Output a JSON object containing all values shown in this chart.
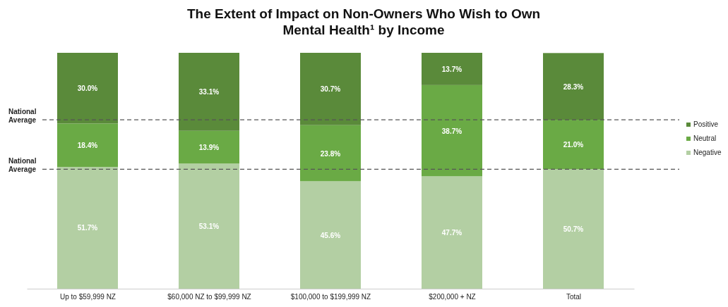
{
  "chart_data": {
    "type": "bar",
    "title": "The Extent of Impact on Non-Owners Who Wish to Own\nMental Health¹ by Income",
    "categories": [
      "Up to $59,999 NZ",
      "$60,000 NZ to $99,999 NZ",
      "$100,000 to $199,999 NZ",
      "$200,000 + NZ",
      "Total"
    ],
    "stacked": true,
    "series": [
      {
        "name": "Negative",
        "color": "#b3cfa3",
        "values": [
          51.7,
          53.1,
          45.6,
          47.7,
          50.7
        ],
        "value_labels": [
          "51.7%",
          "53.1%",
          "45.6%",
          "47.7%",
          "50.7%"
        ]
      },
      {
        "name": "Neutral",
        "color": "#6aaa45",
        "values": [
          18.4,
          13.9,
          23.8,
          38.7,
          21.0
        ],
        "value_labels": [
          "18.4%",
          "13.9%",
          "23.8%",
          "38.7%",
          "21.0%"
        ]
      },
      {
        "name": "Positive",
        "color": "#5a8a3a",
        "values": [
          30.0,
          33.1,
          30.7,
          13.7,
          28.3
        ],
        "value_labels": [
          "30.0%",
          "33.1%",
          "30.7%",
          "13.7%",
          "28.3%"
        ]
      }
    ],
    "ref_lines": [
      {
        "axis": "y",
        "value": 71.7,
        "label": "National Average",
        "line_style": "dashed",
        "color": "#555555"
      },
      {
        "axis": "y",
        "value": 50.7,
        "label": "National Average",
        "line_style": "dashed",
        "color": "#555555"
      }
    ],
    "legend": "right"
  }
}
